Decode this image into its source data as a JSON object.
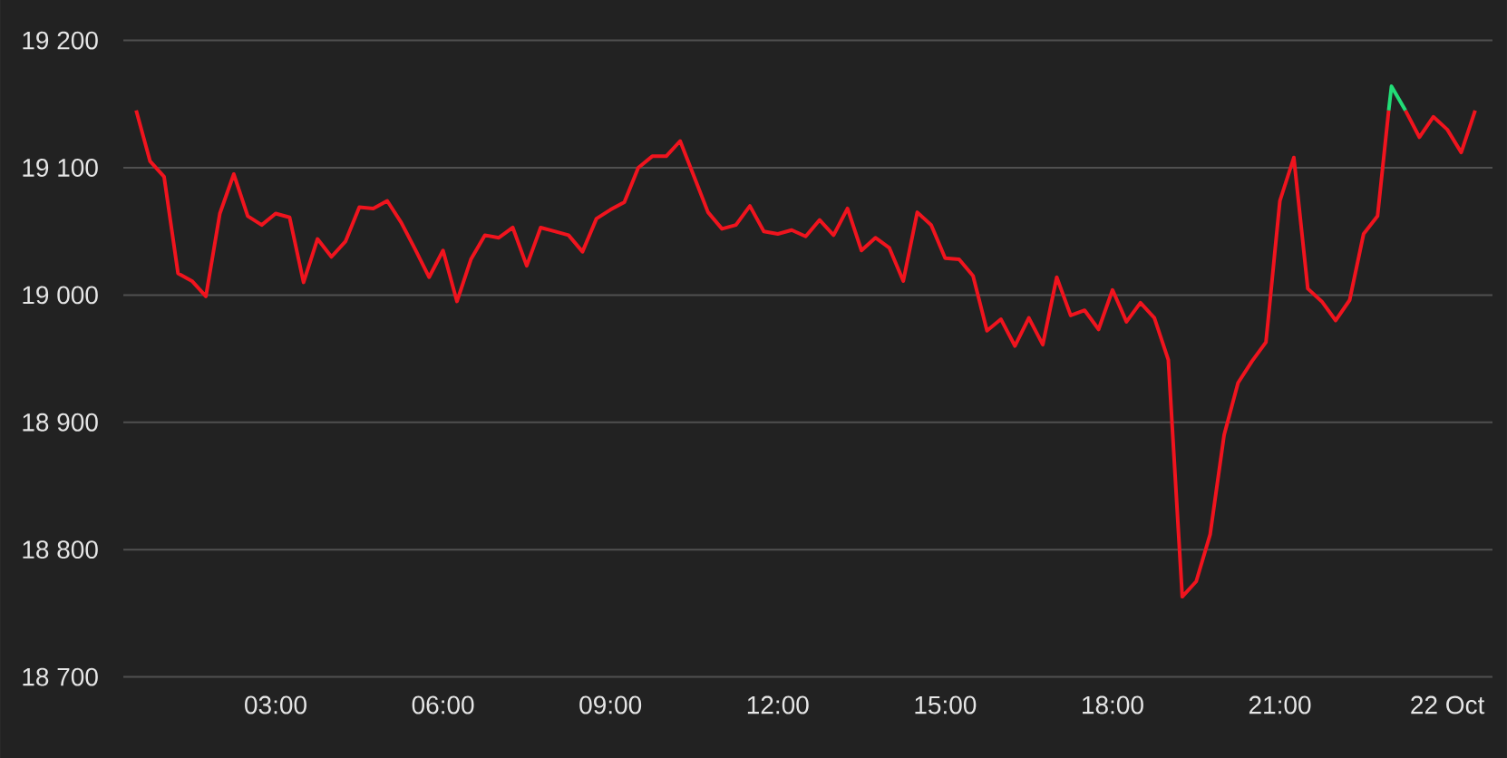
{
  "chart_data": {
    "type": "line",
    "xlim": [
      0.27,
      24.81
    ],
    "xticks": [
      {
        "value": 3,
        "label": "03:00"
      },
      {
        "value": 6,
        "label": "06:00"
      },
      {
        "value": 9,
        "label": "09:00"
      },
      {
        "value": 12,
        "label": "12:00"
      },
      {
        "value": 15,
        "label": "15:00"
      },
      {
        "value": 18,
        "label": "18:00"
      },
      {
        "value": 21,
        "label": "21:00"
      },
      {
        "value": 24,
        "label": "22 Oct"
      }
    ],
    "ylim": [
      18700,
      19200
    ],
    "yticks": [
      {
        "value": 18700,
        "label": "18 700"
      },
      {
        "value": 18800,
        "label": "18 800"
      },
      {
        "value": 18900,
        "label": "18 900"
      },
      {
        "value": 19000,
        "label": "19 000"
      },
      {
        "value": 19100,
        "label": "19 100"
      },
      {
        "value": 19200,
        "label": "19 200"
      }
    ],
    "grid": "y",
    "marker": "none",
    "line_style": "solid",
    "series": [
      {
        "color": "#f0141e",
        "x": [
          0.5,
          0.75,
          1,
          1.25,
          1.5,
          1.75,
          2,
          2.25,
          2.5,
          2.75,
          3,
          3.25,
          3.5,
          3.75,
          4,
          4.25,
          4.5,
          4.75,
          5,
          5.25,
          5.5,
          5.75,
          6,
          6.25,
          6.5,
          6.75,
          7,
          7.25,
          7.5,
          7.75,
          8,
          8.25,
          8.5,
          8.75,
          9,
          9.25,
          9.5,
          9.75,
          10,
          10.25,
          10.5,
          10.75,
          11,
          11.25,
          11.5,
          11.75,
          12,
          12.25,
          12.5,
          12.75,
          13,
          13.25,
          13.5,
          13.75,
          14,
          14.25,
          14.5,
          14.75,
          15,
          15.25,
          15.5,
          15.75,
          16,
          16.25,
          16.5,
          16.75,
          17,
          17.25,
          17.5,
          17.75,
          18,
          18.25,
          18.5,
          18.75,
          19,
          19.25,
          19.5,
          19.75,
          20,
          20.25,
          20.5,
          20.75,
          21,
          21.25,
          21.5,
          21.75,
          22,
          22.25,
          22.5,
          22.75,
          22.95,
          23,
          23.25,
          23.5,
          23.75,
          24,
          24.25,
          24.5
        ],
        "values": [
          19145,
          19105,
          19093,
          19017,
          19011,
          18999,
          19064,
          19095,
          19062,
          19055,
          19064,
          19061,
          19010,
          19044,
          19030,
          19042,
          19069,
          19068,
          19074,
          19057,
          19036,
          19014,
          19035,
          18995,
          19028,
          19047,
          19045,
          19053,
          19023,
          19053,
          19050,
          19047,
          19034,
          19060,
          19067,
          19073,
          19100,
          19109,
          19109,
          19121,
          19093,
          19065,
          19052,
          19055,
          19070,
          19050,
          19048,
          19051,
          19046,
          19059,
          19047,
          19068,
          19035,
          19045,
          19037,
          19011,
          19065,
          19055,
          19029,
          19028,
          19015,
          18972,
          18981,
          18960,
          18982,
          18961,
          19014,
          18984,
          18988,
          18973,
          19004,
          18979,
          18994,
          18982,
          18949,
          18763,
          18775,
          18812,
          18890,
          18931,
          18948,
          18963,
          19074,
          19108,
          19005,
          18995,
          18980,
          18996,
          19048,
          19062,
          19145,
          null,
          19145,
          19124,
          19140,
          19130,
          19112,
          19145
        ]
      },
      {
        "color": "#22dd77",
        "x": [
          22.95,
          23,
          23.25
        ],
        "values": [
          19145,
          19164,
          19145
        ]
      }
    ]
  }
}
